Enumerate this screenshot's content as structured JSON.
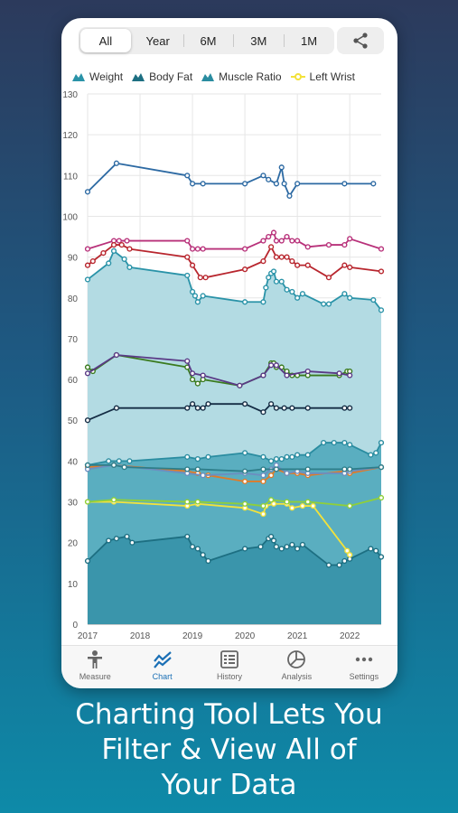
{
  "period_tabs": [
    "All",
    "Year",
    "6M",
    "3M",
    "1M"
  ],
  "active_period": "All",
  "legend": [
    {
      "label": "Weight",
      "icon": "mountain-icon",
      "color": "#2a93a8"
    },
    {
      "label": "Body Fat",
      "icon": "mountain-icon",
      "color": "#1d6f82"
    },
    {
      "label": "Muscle Ratio",
      "icon": "mountain-icon",
      "color": "#2a8ca0"
    },
    {
      "label": "Left Wrist",
      "icon": "line-dot-icon",
      "color": "#f3e23a"
    }
  ],
  "tabs": [
    {
      "label": "Measure",
      "icon": "person-icon"
    },
    {
      "label": "Chart",
      "icon": "chart-icon"
    },
    {
      "label": "History",
      "icon": "history-icon"
    },
    {
      "label": "Analysis",
      "icon": "pie-icon"
    },
    {
      "label": "Settings",
      "icon": "more-icon"
    }
  ],
  "active_tab": "Chart",
  "caption": [
    "Charting Tool Lets You",
    "Filter & View All of",
    "Your Data"
  ],
  "colors": {
    "accent": "#1a6fb5",
    "area_light": "#b3dbe3",
    "area_dark": "#3a95ab"
  },
  "chart_data": {
    "type": "line",
    "y_ticks": [
      0,
      10,
      20,
      30,
      40,
      50,
      60,
      70,
      80,
      90,
      100,
      110,
      120,
      130
    ],
    "x_ticks": [
      "2017",
      "2018",
      "2019",
      "2020",
      "2021",
      "2022"
    ],
    "xlim": [
      2017,
      2022.6
    ],
    "ylim": [
      0,
      130
    ],
    "grid": true,
    "series": [
      {
        "name": "Weight",
        "color": "#2a93a8",
        "area": "#b3dbe3",
        "x": [
          2017.0,
          2017.4,
          2017.5,
          2017.7,
          2017.8,
          2018.9,
          2019.0,
          2019.05,
          2019.1,
          2019.2,
          2020.0,
          2020.35,
          2020.4,
          2020.45,
          2020.5,
          2020.55,
          2020.6,
          2020.7,
          2020.8,
          2020.9,
          2021.0,
          2021.1,
          2021.5,
          2021.6,
          2021.9,
          2022.0,
          2022.45,
          2022.6
        ],
        "y": [
          84.5,
          88.5,
          91.5,
          89.5,
          87.5,
          85.5,
          81.5,
          80.5,
          79,
          80.5,
          79,
          79,
          82.5,
          85,
          86,
          86.5,
          84,
          84,
          82,
          81.5,
          80,
          81,
          78.5,
          78.5,
          81,
          80,
          79.5,
          77
        ]
      },
      {
        "name": "Body Fat",
        "color": "#1d6f82",
        "area": "#3a95ab",
        "x": [
          2017.0,
          2017.4,
          2017.55,
          2017.75,
          2017.85,
          2018.9,
          2019.0,
          2019.1,
          2019.2,
          2019.3,
          2020.0,
          2020.3,
          2020.45,
          2020.5,
          2020.55,
          2020.6,
          2020.7,
          2020.8,
          2020.9,
          2021.0,
          2021.1,
          2021.6,
          2021.8,
          2021.9,
          2022.0,
          2022.4,
          2022.5,
          2022.6
        ],
        "y": [
          15.5,
          20.5,
          21,
          21.5,
          20,
          21.5,
          19,
          18.5,
          17,
          15.5,
          18.5,
          19,
          21,
          21.5,
          20.5,
          19,
          18.5,
          19,
          19.5,
          18.5,
          19.5,
          14.5,
          14.5,
          15.5,
          16,
          18.5,
          18,
          16.5
        ]
      },
      {
        "name": "Muscle Ratio",
        "color": "#2a8ca0",
        "area": "#5aaec0",
        "x": [
          2017.0,
          2017.4,
          2017.6,
          2017.8,
          2018.9,
          2019.1,
          2019.3,
          2020.0,
          2020.35,
          2020.5,
          2020.6,
          2020.7,
          2020.8,
          2020.9,
          2021.0,
          2021.2,
          2021.5,
          2021.7,
          2021.9,
          2022.0,
          2022.4,
          2022.5,
          2022.6
        ],
        "y": [
          39,
          40,
          40,
          40,
          41,
          40.5,
          41,
          42,
          41,
          40,
          40.5,
          40.5,
          41,
          41,
          41.5,
          41.5,
          44.5,
          44.5,
          44.5,
          44,
          41.5,
          42,
          44.5
        ]
      },
      {
        "name": "Left Wrist",
        "color": "#f3e23a",
        "x": [
          2017.0,
          2017.5,
          2018.9,
          2019.1,
          2020.0,
          2020.35,
          2020.4,
          2020.55,
          2020.8,
          2020.9,
          2021.1,
          2021.3,
          2021.95,
          2022.0
        ],
        "y": [
          30,
          30,
          29,
          29.5,
          28.5,
          27,
          29,
          29.5,
          29.5,
          28.5,
          29,
          29,
          18,
          17
        ]
      },
      {
        "color": "#2d6aa3",
        "x": [
          2017.0,
          2017.55,
          2018.9,
          2019.0,
          2019.2,
          2020.0,
          2020.35,
          2020.45,
          2020.6,
          2020.7,
          2020.75,
          2020.85,
          2021.0,
          2021.9,
          2022.45
        ],
        "y": [
          106,
          113,
          110,
          108,
          108,
          108,
          110,
          109,
          108,
          112,
          108,
          105,
          108,
          108,
          108
        ]
      },
      {
        "color": "#b8317a",
        "x": [
          2017.0,
          2017.5,
          2017.6,
          2017.75,
          2018.9,
          2019.0,
          2019.1,
          2019.2,
          2020.0,
          2020.35,
          2020.45,
          2020.55,
          2020.6,
          2020.7,
          2020.8,
          2020.9,
          2021.0,
          2021.2,
          2021.6,
          2021.9,
          2022.0,
          2022.6
        ],
        "y": [
          92,
          94,
          94,
          94,
          94,
          92,
          92,
          92,
          92,
          94,
          95,
          96,
          94,
          94,
          95,
          94,
          94,
          92.5,
          93,
          93,
          94.5,
          92
        ]
      },
      {
        "color": "#b8262e",
        "x": [
          2017.0,
          2017.1,
          2017.3,
          2017.5,
          2017.65,
          2017.8,
          2018.9,
          2019.0,
          2019.15,
          2019.25,
          2020.0,
          2020.35,
          2020.5,
          2020.6,
          2020.7,
          2020.8,
          2020.9,
          2021.0,
          2021.2,
          2021.6,
          2021.9,
          2022.0,
          2022.6
        ],
        "y": [
          88,
          89,
          91,
          93,
          93,
          92,
          90,
          88,
          85,
          85,
          87,
          89,
          92.5,
          90,
          90,
          90,
          89,
          88,
          88,
          85,
          88,
          87.5,
          86.5
        ]
      },
      {
        "color": "#3a7a1e",
        "x": [
          2017.0,
          2017.1,
          2017.55,
          2018.9,
          2019.0,
          2019.1,
          2019.2,
          2019.9,
          2020.35,
          2020.5,
          2020.55,
          2020.6,
          2020.7,
          2020.8,
          2020.9,
          2021.0,
          2021.2,
          2021.8,
          2021.95,
          2022.0
        ],
        "y": [
          63,
          62,
          66,
          63,
          60,
          59,
          60,
          58.5,
          61,
          64,
          64,
          63,
          63,
          62,
          61,
          61,
          61,
          61,
          62,
          62
        ]
      },
      {
        "color": "#5a3a86",
        "x": [
          2017.0,
          2017.55,
          2018.9,
          2019.0,
          2019.2,
          2019.9,
          2020.35,
          2020.5,
          2020.6,
          2020.8,
          2021.2,
          2021.8,
          2022.0
        ],
        "y": [
          61.5,
          66,
          64.5,
          61.5,
          61,
          58.5,
          61,
          63.5,
          63.5,
          61,
          62,
          61.5,
          61
        ]
      },
      {
        "color": "#142c44",
        "x": [
          2017.0,
          2017.55,
          2018.9,
          2019.0,
          2019.1,
          2019.2,
          2019.3,
          2020.0,
          2020.35,
          2020.5,
          2020.6,
          2020.75,
          2020.9,
          2021.2,
          2021.9,
          2022.0
        ],
        "y": [
          50,
          53,
          53,
          54,
          53,
          53,
          54,
          54,
          52,
          54,
          53,
          53,
          53,
          53,
          53,
          53
        ]
      },
      {
        "color": "#e07b28",
        "x": [
          2017.0,
          2017.5,
          2018.9,
          2019.1,
          2019.3,
          2020.0,
          2020.35,
          2020.5,
          2020.6,
          2020.8,
          2021.0,
          2021.2,
          2021.9,
          2022.0,
          2022.6
        ],
        "y": [
          38.5,
          39,
          37.5,
          37,
          36.5,
          35,
          35,
          36.5,
          38,
          37,
          37,
          36.5,
          37.5,
          37,
          38.5
        ]
      },
      {
        "color": "#6c8ec0",
        "x": [
          2017.0,
          2017.5,
          2018.9,
          2019.2,
          2020.0,
          2020.35,
          2020.5,
          2020.6,
          2020.8,
          2021.0,
          2021.2,
          2021.9,
          2022.0,
          2022.6
        ],
        "y": [
          38,
          39,
          37,
          36.5,
          37,
          36.5,
          38,
          39,
          37,
          37.5,
          37,
          37,
          37.5,
          38.5
        ]
      },
      {
        "color": "#8fcf3a",
        "x": [
          2017.0,
          2017.5,
          2018.9,
          2019.1,
          2020.0,
          2020.35,
          2020.5,
          2020.8,
          2021.2,
          2022.0,
          2022.6
        ],
        "y": [
          30,
          30.5,
          30,
          30,
          29.5,
          29,
          30.5,
          30,
          30,
          29,
          31
        ]
      },
      {
        "color": "#2e7e8a",
        "x": [
          2017.0,
          2017.5,
          2017.7,
          2018.9,
          2019.1,
          2020.0,
          2020.35,
          2020.6,
          2021.2,
          2021.9,
          2022.0,
          2022.6
        ],
        "y": [
          39,
          39,
          38.5,
          38,
          38,
          37.5,
          38,
          38,
          38,
          38,
          38,
          38.5
        ]
      }
    ]
  }
}
